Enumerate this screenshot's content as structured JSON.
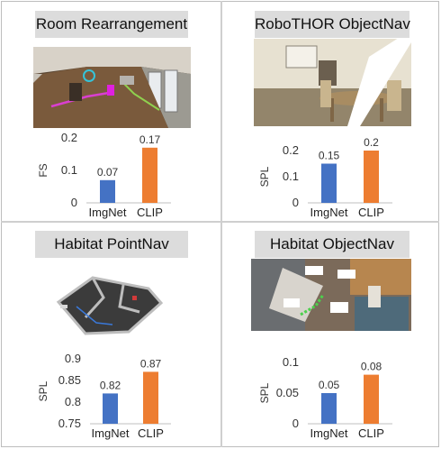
{
  "colors": {
    "imgnet": "#4472C4",
    "clip": "#ED7D31",
    "title_bg": "#dcdcdc",
    "axis": "#bfbfbf"
  },
  "panels": [
    {
      "title": "Room Rearrangement",
      "image": "room-rearrangement-scene"
    },
    {
      "title": "RoboTHOR ObjectNav",
      "image": "robothor-objectnav-scene"
    },
    {
      "title": "Habitat PointNav",
      "image": "habitat-pointnav-map"
    },
    {
      "title": "Habitat ObjectNav",
      "image": "habitat-objectnav-map"
    }
  ],
  "chart_data": [
    {
      "type": "bar",
      "title": "",
      "ylabel": "FS",
      "categories": [
        "ImgNet",
        "CLIP"
      ],
      "values": [
        0.07,
        0.17
      ],
      "value_labels": [
        "0.07",
        "0.17"
      ],
      "ylim": [
        0,
        0.2
      ],
      "yticks": [
        0,
        0.1,
        0.2
      ],
      "ytick_labels": [
        "0",
        "0.1",
        "0.2"
      ]
    },
    {
      "type": "bar",
      "title": "",
      "ylabel": "SPL",
      "categories": [
        "ImgNet",
        "CLIP"
      ],
      "values": [
        0.15,
        0.2
      ],
      "value_labels": [
        "0.15",
        "0.2"
      ],
      "ylim": [
        0,
        0.2
      ],
      "yticks": [
        0,
        0.1,
        0.2
      ],
      "ytick_labels": [
        "0",
        "0.1",
        "0.2"
      ]
    },
    {
      "type": "bar",
      "title": "",
      "ylabel": "SPL",
      "categories": [
        "ImgNet",
        "CLIP"
      ],
      "values": [
        0.82,
        0.87
      ],
      "value_labels": [
        "0.82",
        "0.87"
      ],
      "ylim": [
        0.75,
        0.9
      ],
      "yticks": [
        0.75,
        0.8,
        0.85,
        0.9
      ],
      "ytick_labels": [
        "0.75",
        "0.8",
        "0.85",
        "0.9"
      ]
    },
    {
      "type": "bar",
      "title": "",
      "ylabel": "SPL",
      "categories": [
        "ImgNet",
        "CLIP"
      ],
      "values": [
        0.05,
        0.08
      ],
      "value_labels": [
        "0.05",
        "0.08"
      ],
      "ylim": [
        0,
        0.1
      ],
      "yticks": [
        0,
        0.05,
        0.1
      ],
      "ytick_labels": [
        "0",
        "0.05",
        "0.1"
      ]
    }
  ]
}
